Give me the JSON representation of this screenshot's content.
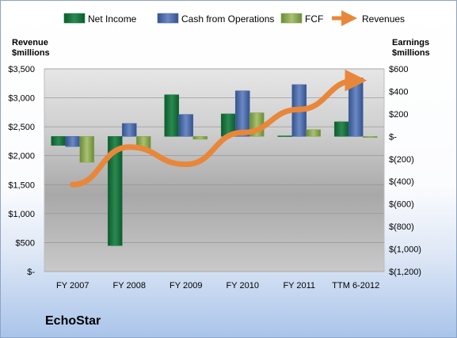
{
  "company": "EchoStar",
  "colors": {
    "net_income": "#1f7a44",
    "cash_from_operations": "#4a6aa8",
    "fcf": "#8aa654",
    "revenues": "#e8873a"
  },
  "chart_data": {
    "type": "bar",
    "categories": [
      "FY 2007",
      "FY 2008",
      "FY 2009",
      "FY 2010",
      "FY 2011",
      "TTM 6-2012"
    ],
    "left_axis": {
      "title": [
        "Revenue",
        "$millions"
      ],
      "range": [
        0,
        3500
      ],
      "ticks": [
        "$-",
        "$500",
        "$1,000",
        "$1,500",
        "$2,000",
        "$2,500",
        "$3,000",
        "$3,500"
      ]
    },
    "right_axis": {
      "title": [
        "Earnings",
        "$millions"
      ],
      "range": [
        -1200,
        600
      ],
      "ticks": [
        "$(1,200)",
        "$(1,000)",
        "$(800)",
        "$(600)",
        "$(400)",
        "$(200)",
        "$-",
        "$200",
        "$400",
        "$600"
      ]
    },
    "series": [
      {
        "name": "Net Income",
        "axis": "right",
        "kind": "bar",
        "values": [
          -80,
          -970,
          370,
          200,
          5,
          130
        ]
      },
      {
        "name": "Cash from Operations",
        "axis": "right",
        "kind": "bar",
        "values": [
          -90,
          115,
          195,
          405,
          460,
          520
        ]
      },
      {
        "name": "FCF",
        "axis": "right",
        "kind": "bar",
        "values": [
          -230,
          -120,
          -25,
          210,
          60,
          -10
        ]
      },
      {
        "name": "Revenues",
        "axis": "left",
        "kind": "line",
        "values": [
          1500,
          2150,
          1850,
          2400,
          2800,
          3300
        ]
      }
    ],
    "legend_position": "top",
    "grid": true
  }
}
